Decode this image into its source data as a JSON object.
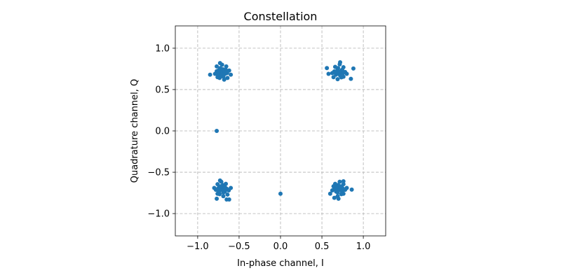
{
  "chart_data": {
    "type": "scatter",
    "title": "Constellation",
    "xlabel": "In-phase channel, I",
    "ylabel": "Quadrature channel, Q",
    "xlim": [
      -1.27,
      1.27
    ],
    "ylim": [
      -1.27,
      1.27
    ],
    "grid": true,
    "point_color": "#1f77b4",
    "x_ticks": [
      {
        "value": -1.0,
        "label": "−1.0"
      },
      {
        "value": -0.5,
        "label": "−0.5"
      },
      {
        "value": 0.0,
        "label": "0.0"
      },
      {
        "value": 0.5,
        "label": "0.5"
      },
      {
        "value": 1.0,
        "label": "1.0"
      }
    ],
    "y_ticks": [
      {
        "value": -1.0,
        "label": "−1.0"
      },
      {
        "value": -0.5,
        "label": "−0.5"
      },
      {
        "value": 0.0,
        "label": "0.0"
      },
      {
        "value": 0.5,
        "label": "0.5"
      },
      {
        "value": 1.0,
        "label": "1.0"
      }
    ],
    "points": [
      [
        -0.707,
        0.707
      ],
      [
        -0.662,
        0.741
      ],
      [
        -0.751,
        0.678
      ],
      [
        -0.69,
        0.655
      ],
      [
        -0.728,
        0.76
      ],
      [
        -0.645,
        0.7
      ],
      [
        -0.77,
        0.722
      ],
      [
        -0.705,
        0.8
      ],
      [
        -0.68,
        0.62
      ],
      [
        -0.735,
        0.64
      ],
      [
        -0.655,
        0.78
      ],
      [
        -0.79,
        0.69
      ],
      [
        -0.62,
        0.73
      ],
      [
        -0.76,
        0.65
      ],
      [
        -0.7,
        0.7
      ],
      [
        -0.715,
        0.69
      ],
      [
        -0.69,
        0.72
      ],
      [
        -0.725,
        0.715
      ],
      [
        -0.67,
        0.69
      ],
      [
        -0.745,
        0.735
      ],
      [
        -0.85,
        0.68
      ],
      [
        -0.6,
        0.68
      ],
      [
        -0.73,
        0.82
      ],
      [
        -0.64,
        0.64
      ],
      [
        -0.77,
        0.78
      ],
      [
        -0.695,
        0.745
      ],
      [
        -0.72,
        0.67
      ],
      [
        -0.66,
        0.71
      ],
      [
        -0.75,
        0.705
      ],
      [
        -0.685,
        0.685
      ],
      [
        0.707,
        0.707
      ],
      [
        0.74,
        0.735
      ],
      [
        0.672,
        0.69
      ],
      [
        0.695,
        0.76
      ],
      [
        0.76,
        0.655
      ],
      [
        0.65,
        0.72
      ],
      [
        0.78,
        0.712
      ],
      [
        0.715,
        0.805
      ],
      [
        0.69,
        0.625
      ],
      [
        0.735,
        0.648
      ],
      [
        0.66,
        0.775
      ],
      [
        0.8,
        0.69
      ],
      [
        0.625,
        0.7
      ],
      [
        0.76,
        0.77
      ],
      [
        0.7,
        0.7
      ],
      [
        0.712,
        0.69
      ],
      [
        0.685,
        0.722
      ],
      [
        0.728,
        0.718
      ],
      [
        0.67,
        0.68
      ],
      [
        0.745,
        0.74
      ],
      [
        0.56,
        0.76
      ],
      [
        0.58,
        0.69
      ],
      [
        0.88,
        0.755
      ],
      [
        0.85,
        0.63
      ],
      [
        0.72,
        0.83
      ],
      [
        0.64,
        0.65
      ],
      [
        0.755,
        0.7
      ],
      [
        0.69,
        0.745
      ],
      [
        0.72,
        0.67
      ],
      [
        0.66,
        0.71
      ],
      [
        -0.707,
        -0.707
      ],
      [
        -0.74,
        -0.672
      ],
      [
        -0.672,
        -0.735
      ],
      [
        -0.695,
        -0.655
      ],
      [
        -0.76,
        -0.76
      ],
      [
        -0.65,
        -0.7
      ],
      [
        -0.78,
        -0.712
      ],
      [
        -0.715,
        -0.615
      ],
      [
        -0.69,
        -0.79
      ],
      [
        -0.735,
        -0.765
      ],
      [
        -0.66,
        -0.64
      ],
      [
        -0.8,
        -0.69
      ],
      [
        -0.625,
        -0.72
      ],
      [
        -0.76,
        -0.645
      ],
      [
        -0.7,
        -0.7
      ],
      [
        -0.712,
        -0.69
      ],
      [
        -0.685,
        -0.722
      ],
      [
        -0.728,
        -0.718
      ],
      [
        -0.67,
        -0.68
      ],
      [
        -0.745,
        -0.74
      ],
      [
        -0.65,
        -0.83
      ],
      [
        -0.62,
        -0.83
      ],
      [
        -0.77,
        -0.82
      ],
      [
        -0.6,
        -0.69
      ],
      [
        -0.73,
        -0.6
      ],
      [
        -0.64,
        -0.77
      ],
      [
        -0.755,
        -0.7
      ],
      [
        -0.69,
        -0.745
      ],
      [
        -0.72,
        -0.67
      ],
      [
        -0.66,
        -0.71
      ],
      [
        0.707,
        -0.707
      ],
      [
        0.74,
        -0.672
      ],
      [
        0.672,
        -0.735
      ],
      [
        0.695,
        -0.655
      ],
      [
        0.76,
        -0.76
      ],
      [
        0.65,
        -0.7
      ],
      [
        0.78,
        -0.712
      ],
      [
        0.715,
        -0.615
      ],
      [
        0.69,
        -0.79
      ],
      [
        0.735,
        -0.765
      ],
      [
        0.66,
        -0.64
      ],
      [
        0.8,
        -0.69
      ],
      [
        0.625,
        -0.72
      ],
      [
        0.76,
        -0.645
      ],
      [
        0.7,
        -0.7
      ],
      [
        0.712,
        -0.69
      ],
      [
        0.685,
        -0.722
      ],
      [
        0.728,
        -0.718
      ],
      [
        0.67,
        -0.68
      ],
      [
        0.745,
        -0.74
      ],
      [
        0.86,
        -0.71
      ],
      [
        0.6,
        -0.76
      ],
      [
        0.65,
        -0.81
      ],
      [
        0.76,
        -0.61
      ],
      [
        0.7,
        -0.82
      ],
      [
        0.64,
        -0.67
      ],
      [
        0.755,
        -0.7
      ],
      [
        0.69,
        -0.745
      ],
      [
        0.72,
        -0.67
      ],
      [
        0.66,
        -0.71
      ],
      [
        -0.77,
        0.0
      ],
      [
        0.0,
        -0.76
      ]
    ]
  }
}
